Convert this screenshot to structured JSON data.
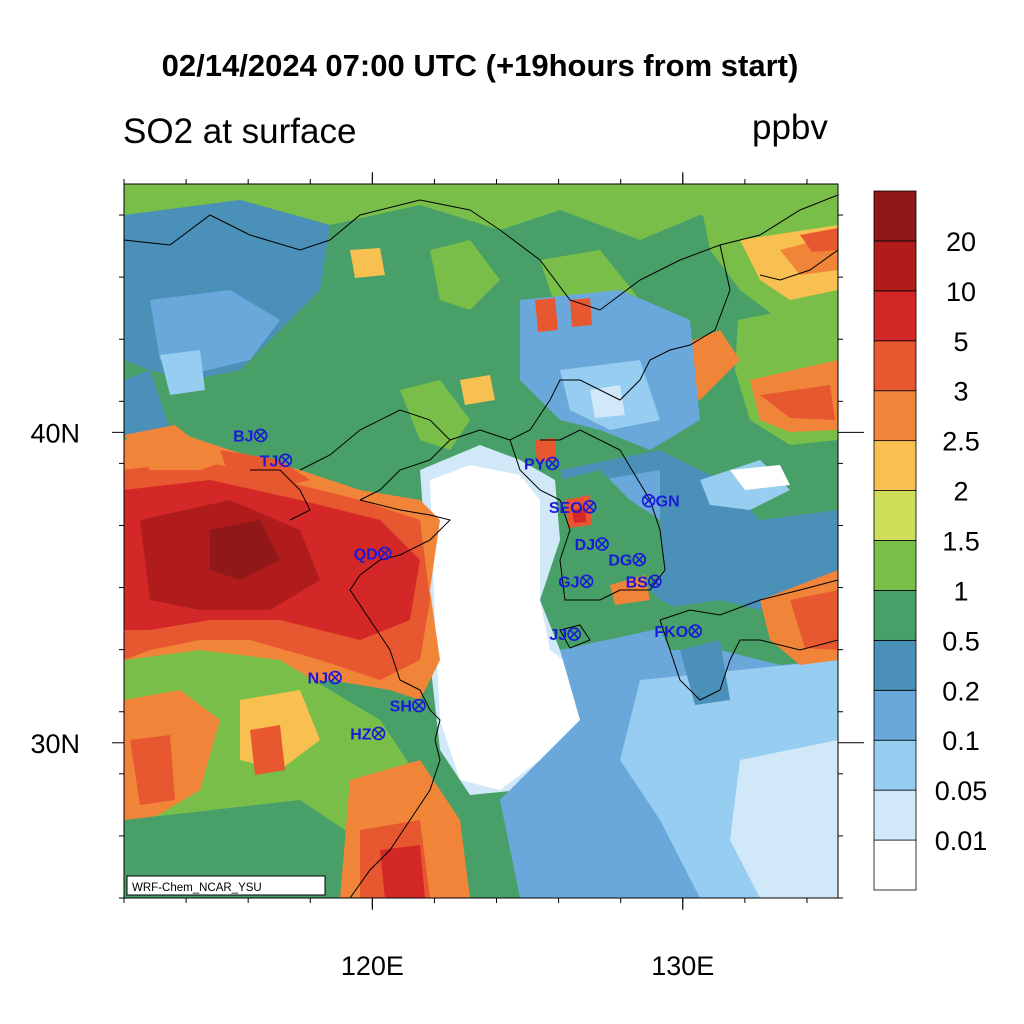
{
  "title": "02/14/2024 07:00 UTC (+19hours from start)",
  "subtitle_left": "SO2 at surface",
  "subtitle_right": "ppbv",
  "credit": "WRF-Chem_NCAR_YSU",
  "axes": {
    "lon_ticks": [
      {
        "value": 120,
        "label": "120E"
      },
      {
        "value": 130,
        "label": "130E"
      }
    ],
    "lat_ticks": [
      {
        "value": 40,
        "label": "40N"
      },
      {
        "value": 30,
        "label": "30N"
      }
    ],
    "lon_range": [
      112,
      135
    ],
    "lat_range": [
      25,
      48
    ]
  },
  "colorbar": {
    "labels": [
      "0.01",
      "0.05",
      "0.1",
      "0.2",
      "0.5",
      "1",
      "1.5",
      "2",
      "2.5",
      "3",
      "5",
      "10",
      "20"
    ],
    "colors": [
      "#ffffff",
      "#d0e8f8",
      "#96cdf0",
      "#6aa8dc",
      "#4a90b8",
      "#48a068",
      "#78be48",
      "#cede58",
      "#f8c050",
      "#f08438",
      "#e85830",
      "#d42828",
      "#b01c1c",
      "#901818"
    ]
  },
  "stations": [
    {
      "code": "BJ",
      "marker_side": "right",
      "lon": 116.4,
      "lat": 39.9
    },
    {
      "code": "TJ",
      "marker_side": "right",
      "lon": 117.2,
      "lat": 39.1
    },
    {
      "code": "PY",
      "marker_side": "right",
      "lon": 125.8,
      "lat": 39.0
    },
    {
      "code": "SEO",
      "marker_side": "right",
      "lon": 127.0,
      "lat": 37.6
    },
    {
      "code": "GN",
      "marker_side": "left",
      "lon": 128.9,
      "lat": 37.8
    },
    {
      "code": "QD",
      "marker_side": "right",
      "lon": 120.4,
      "lat": 36.1
    },
    {
      "code": "DJ",
      "marker_side": "right",
      "lon": 127.4,
      "lat": 36.4
    },
    {
      "code": "DG",
      "marker_side": "right",
      "lon": 128.6,
      "lat": 35.9
    },
    {
      "code": "GJ",
      "marker_side": "right",
      "lon": 126.9,
      "lat": 35.2
    },
    {
      "code": "BS",
      "marker_side": "right",
      "lon": 129.1,
      "lat": 35.2
    },
    {
      "code": "JJ",
      "marker_side": "right",
      "lon": 126.5,
      "lat": 33.5
    },
    {
      "code": "FKO",
      "marker_side": "right",
      "lon": 130.4,
      "lat": 33.6
    },
    {
      "code": "NJ",
      "marker_side": "right",
      "lon": 118.8,
      "lat": 32.1
    },
    {
      "code": "SH",
      "marker_side": "right",
      "lon": 121.5,
      "lat": 31.2
    },
    {
      "code": "HZ",
      "marker_side": "right",
      "lon": 120.2,
      "lat": 30.3
    }
  ],
  "station_color": "#1a1ad8"
}
